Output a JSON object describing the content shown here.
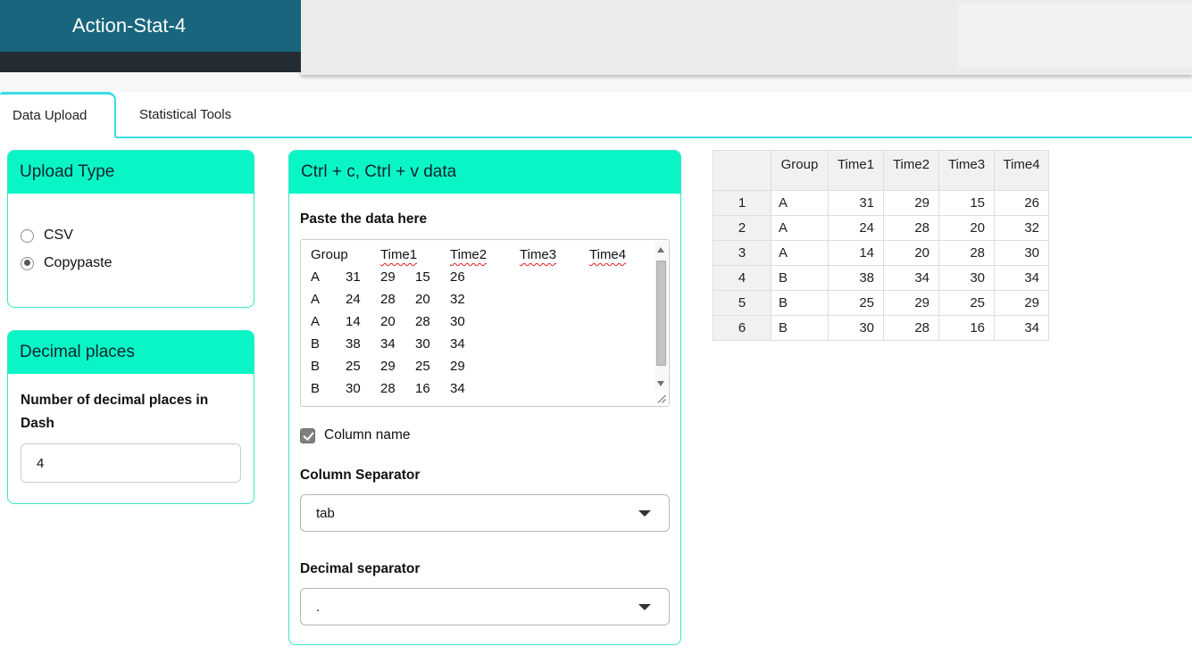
{
  "app": {
    "title": "Action-Stat-4"
  },
  "tabs": [
    {
      "label": "Data Upload",
      "active": true
    },
    {
      "label": "Statistical Tools",
      "active": false
    }
  ],
  "upload_type": {
    "title": "Upload Type",
    "options": [
      {
        "label": "CSV",
        "selected": false
      },
      {
        "label": "Copypaste",
        "selected": true
      }
    ]
  },
  "decimal_places": {
    "title": "Decimal places",
    "label": "Number of decimal places in Dash",
    "value": "4"
  },
  "paste_panel": {
    "title": "Ctrl + c, Ctrl + v data",
    "paste_label": "Paste the data here",
    "textarea": {
      "header": [
        "Group",
        "Time1",
        "Time2",
        "Time3",
        "Time4"
      ],
      "misspelled": [
        "Time1",
        "Time2",
        "Time3",
        "Time4"
      ],
      "rows": [
        [
          "A",
          "31",
          "29",
          "15",
          "26"
        ],
        [
          "A",
          "24",
          "28",
          "20",
          "32"
        ],
        [
          "A",
          "14",
          "20",
          "28",
          "30"
        ],
        [
          "B",
          "38",
          "34",
          "30",
          "34"
        ],
        [
          "B",
          "25",
          "29",
          "25",
          "29"
        ],
        [
          "B",
          "30",
          "28",
          "16",
          "34"
        ]
      ]
    },
    "column_name_checkbox": {
      "label": "Column name",
      "checked": true
    },
    "column_separator": {
      "label": "Column Separator",
      "value": "tab"
    },
    "decimal_separator": {
      "label": "Decimal separator",
      "value": "."
    }
  },
  "data_table": {
    "columns": [
      "",
      "Group",
      "Time1",
      "Time2",
      "Time3",
      "Time4"
    ],
    "rows": [
      {
        "index": "1",
        "values": [
          "A",
          "31",
          "29",
          "15",
          "26"
        ]
      },
      {
        "index": "2",
        "values": [
          "A",
          "24",
          "28",
          "20",
          "32"
        ]
      },
      {
        "index": "3",
        "values": [
          "A",
          "14",
          "20",
          "28",
          "30"
        ]
      },
      {
        "index": "4",
        "values": [
          "B",
          "38",
          "34",
          "30",
          "34"
        ]
      },
      {
        "index": "5",
        "values": [
          "B",
          "25",
          "29",
          "25",
          "29"
        ]
      },
      {
        "index": "6",
        "values": [
          "B",
          "30",
          "28",
          "16",
          "34"
        ]
      }
    ]
  },
  "colors": {
    "teal": "#18657d",
    "darkbar": "#232d33",
    "mint": "#0af5c5",
    "cyan": "#3adce8",
    "cardborder": "#35e6c8",
    "misspell": "#e02020",
    "tablehead": "#f1f1f1",
    "tableborder": "#dddddd"
  }
}
